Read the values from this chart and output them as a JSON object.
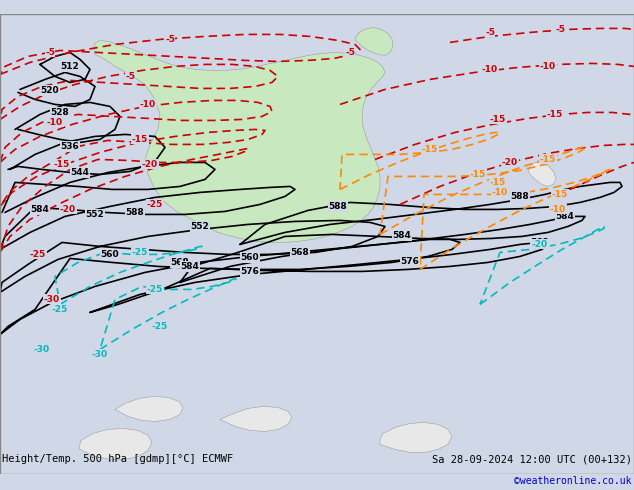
{
  "title_left": "Height/Temp. 500 hPa [gdmp][°C] ECMWF",
  "title_right": "Sa 28-09-2024 12:00 UTC (00+132)",
  "credit": "©weatheronline.co.uk",
  "background_color": "#d0d8e8",
  "land_color": "#e8e8e8",
  "australia_color": "#c8e8c0",
  "font_color_black": "#000000",
  "font_color_red": "#cc0000",
  "font_color_blue": "#0000cc",
  "font_color_cyan": "#00aaaa",
  "font_color_orange": "#ff8800",
  "contour_black_color": "#000000",
  "contour_red_color": "#cc0000",
  "contour_orange_color": "#ff8800",
  "contour_cyan_color": "#00bbbb",
  "contour_green_color": "#00aa00"
}
